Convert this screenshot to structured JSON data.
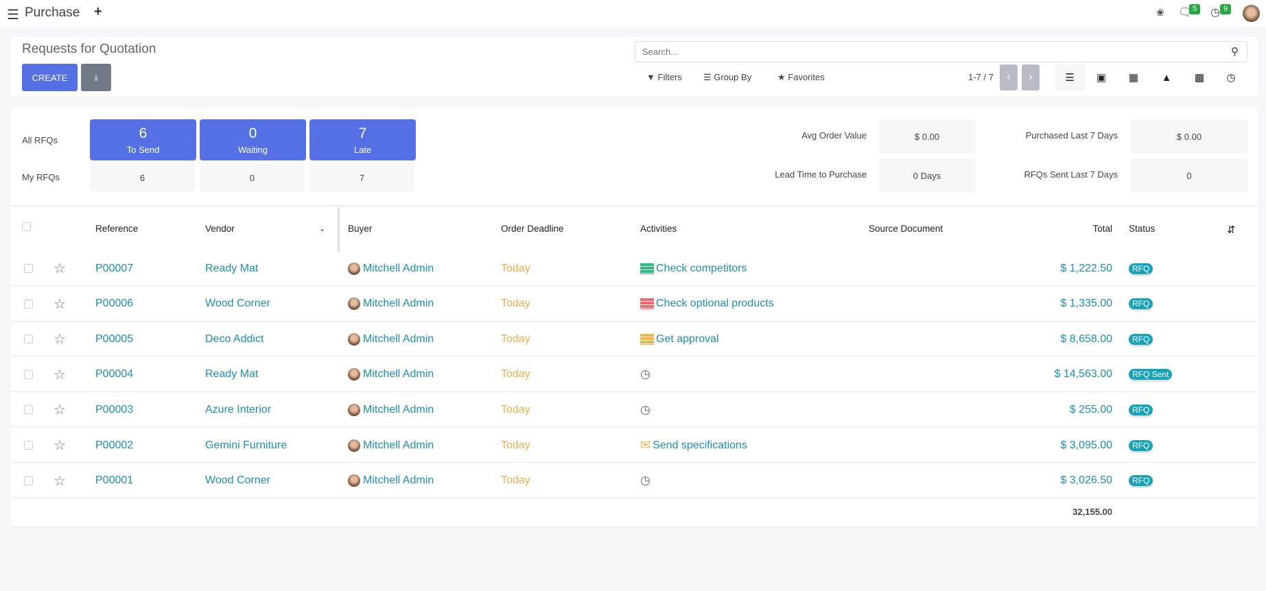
{
  "navbar": {
    "app_title": "Purchase",
    "chat_count": "5",
    "activity_count": "9"
  },
  "control_panel": {
    "title": "Requests for Quotation",
    "create_label": "CREATE",
    "search_placeholder": "Search...",
    "filters_label": "Filters",
    "group_by_label": "Group By",
    "favorites_label": "Favorites",
    "pager": "1-7 / 7",
    "active_view": "list"
  },
  "dashboard": {
    "all_label": "All RFQs",
    "my_label": "My RFQs",
    "tiles": [
      {
        "count": "6",
        "label": "To Send",
        "mine": "6"
      },
      {
        "count": "0",
        "label": "Waiting",
        "mine": "0"
      },
      {
        "count": "7",
        "label": "Late",
        "mine": "7"
      }
    ],
    "stats": [
      {
        "label": "Avg Order Value",
        "value": "$ 0.00"
      },
      {
        "label": "Lead Time to Purchase",
        "value": "0 Days"
      },
      {
        "label": "Purchased Last 7 Days",
        "value": "$ 0.00"
      },
      {
        "label": "RFQs Sent Last 7 Days",
        "value": "0"
      }
    ]
  },
  "table": {
    "columns": {
      "reference": "Reference",
      "vendor": "Vendor",
      "buyer": "Buyer",
      "deadline": "Order Deadline",
      "activities": "Activities",
      "source": "Source Document",
      "total": "Total",
      "status": "Status"
    },
    "rows": [
      {
        "reference": "P00007",
        "vendor": "Ready Mat",
        "buyer": "Mitchell Admin",
        "deadline": "Today",
        "activity": "Check competitors",
        "activity_icon": "tasks-icon",
        "activity_color": "#2bbb7e",
        "total": "$ 1,222.50",
        "status": "RFQ"
      },
      {
        "reference": "P00006",
        "vendor": "Wood Corner",
        "buyer": "Mitchell Admin",
        "deadline": "Today",
        "activity": "Check optional products",
        "activity_icon": "tasks-icon",
        "activity_color": "#f2676a",
        "total": "$ 1,335.00",
        "status": "RFQ"
      },
      {
        "reference": "P00005",
        "vendor": "Deco Addict",
        "buyer": "Mitchell Admin",
        "deadline": "Today",
        "activity": "Get approval",
        "activity_icon": "tasks-icon",
        "activity_color": "#f0b44c",
        "total": "$ 8,658.00",
        "status": "RFQ"
      },
      {
        "reference": "P00004",
        "vendor": "Ready Mat",
        "buyer": "Mitchell Admin",
        "deadline": "Today",
        "activity": "",
        "activity_icon": "clock-icon",
        "activity_color": "#666",
        "total": "$ 14,563.00",
        "status": "RFQ Sent"
      },
      {
        "reference": "P00003",
        "vendor": "Azure Interior",
        "buyer": "Mitchell Admin",
        "deadline": "Today",
        "activity": "",
        "activity_icon": "clock-icon",
        "activity_color": "#666",
        "total": "$ 255.00",
        "status": "RFQ"
      },
      {
        "reference": "P00002",
        "vendor": "Gemini Furniture",
        "buyer": "Mitchell Admin",
        "deadline": "Today",
        "activity": "Send specifications",
        "activity_icon": "envelope-icon",
        "activity_color": "#f0b44c",
        "total": "$ 3,095.00",
        "status": "RFQ"
      },
      {
        "reference": "P00001",
        "vendor": "Wood Corner",
        "buyer": "Mitchell Admin",
        "deadline": "Today",
        "activity": "",
        "activity_icon": "clock-icon",
        "activity_color": "#666",
        "total": "$ 3,026.50",
        "status": "RFQ"
      }
    ],
    "sum_total": "32,155.00"
  },
  "colors": {
    "primary": "#5470e4",
    "link": "#1d8db5",
    "today": "#f0ad4e",
    "badge": "#17a2b8"
  }
}
